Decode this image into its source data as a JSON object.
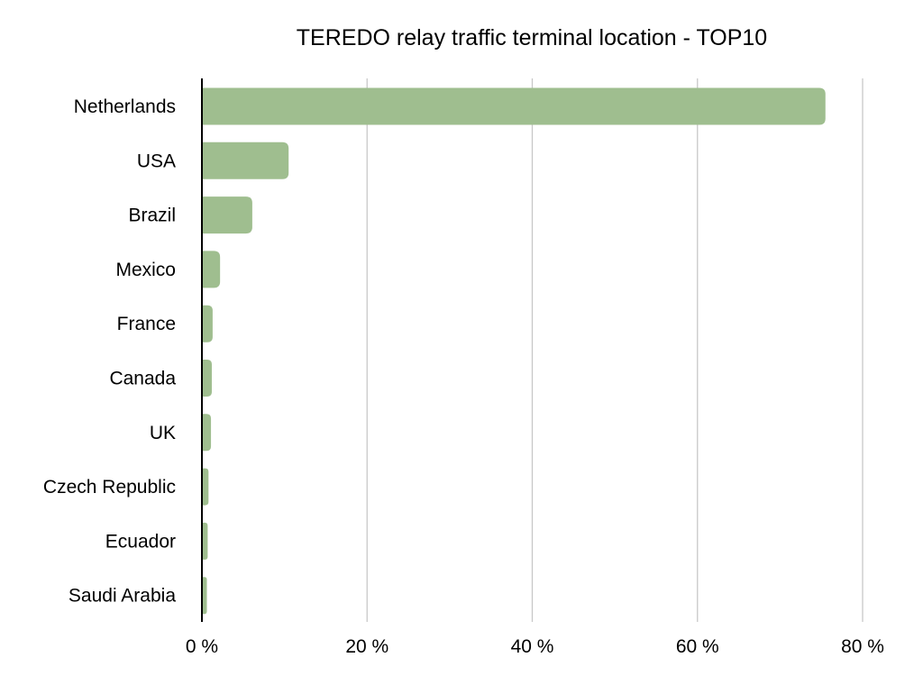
{
  "chart_data": {
    "type": "bar",
    "orientation": "horizontal",
    "title": "TEREDO relay traffic terminal location - TOP10",
    "categories": [
      "Netherlands",
      "USA",
      "Brazil",
      "Mexico",
      "France",
      "Canada",
      "UK",
      "Czech Republic",
      "Ecuador",
      "Saudi Arabia"
    ],
    "values": [
      75.5,
      10.5,
      6.1,
      2.2,
      1.3,
      1.2,
      1.1,
      0.8,
      0.7,
      0.6
    ],
    "xlim": [
      0,
      80
    ],
    "xticks": [
      0,
      20,
      40,
      60,
      80
    ],
    "xtick_labels": [
      "0 %",
      "20 %",
      "40 %",
      "60 %",
      "80 %"
    ],
    "xlabel": "",
    "ylabel": "",
    "grid": "vertical",
    "legend": "none",
    "bar_color": "#9fbe8f",
    "grid_color": "#c8c8c8",
    "axis_color": "#000000"
  }
}
